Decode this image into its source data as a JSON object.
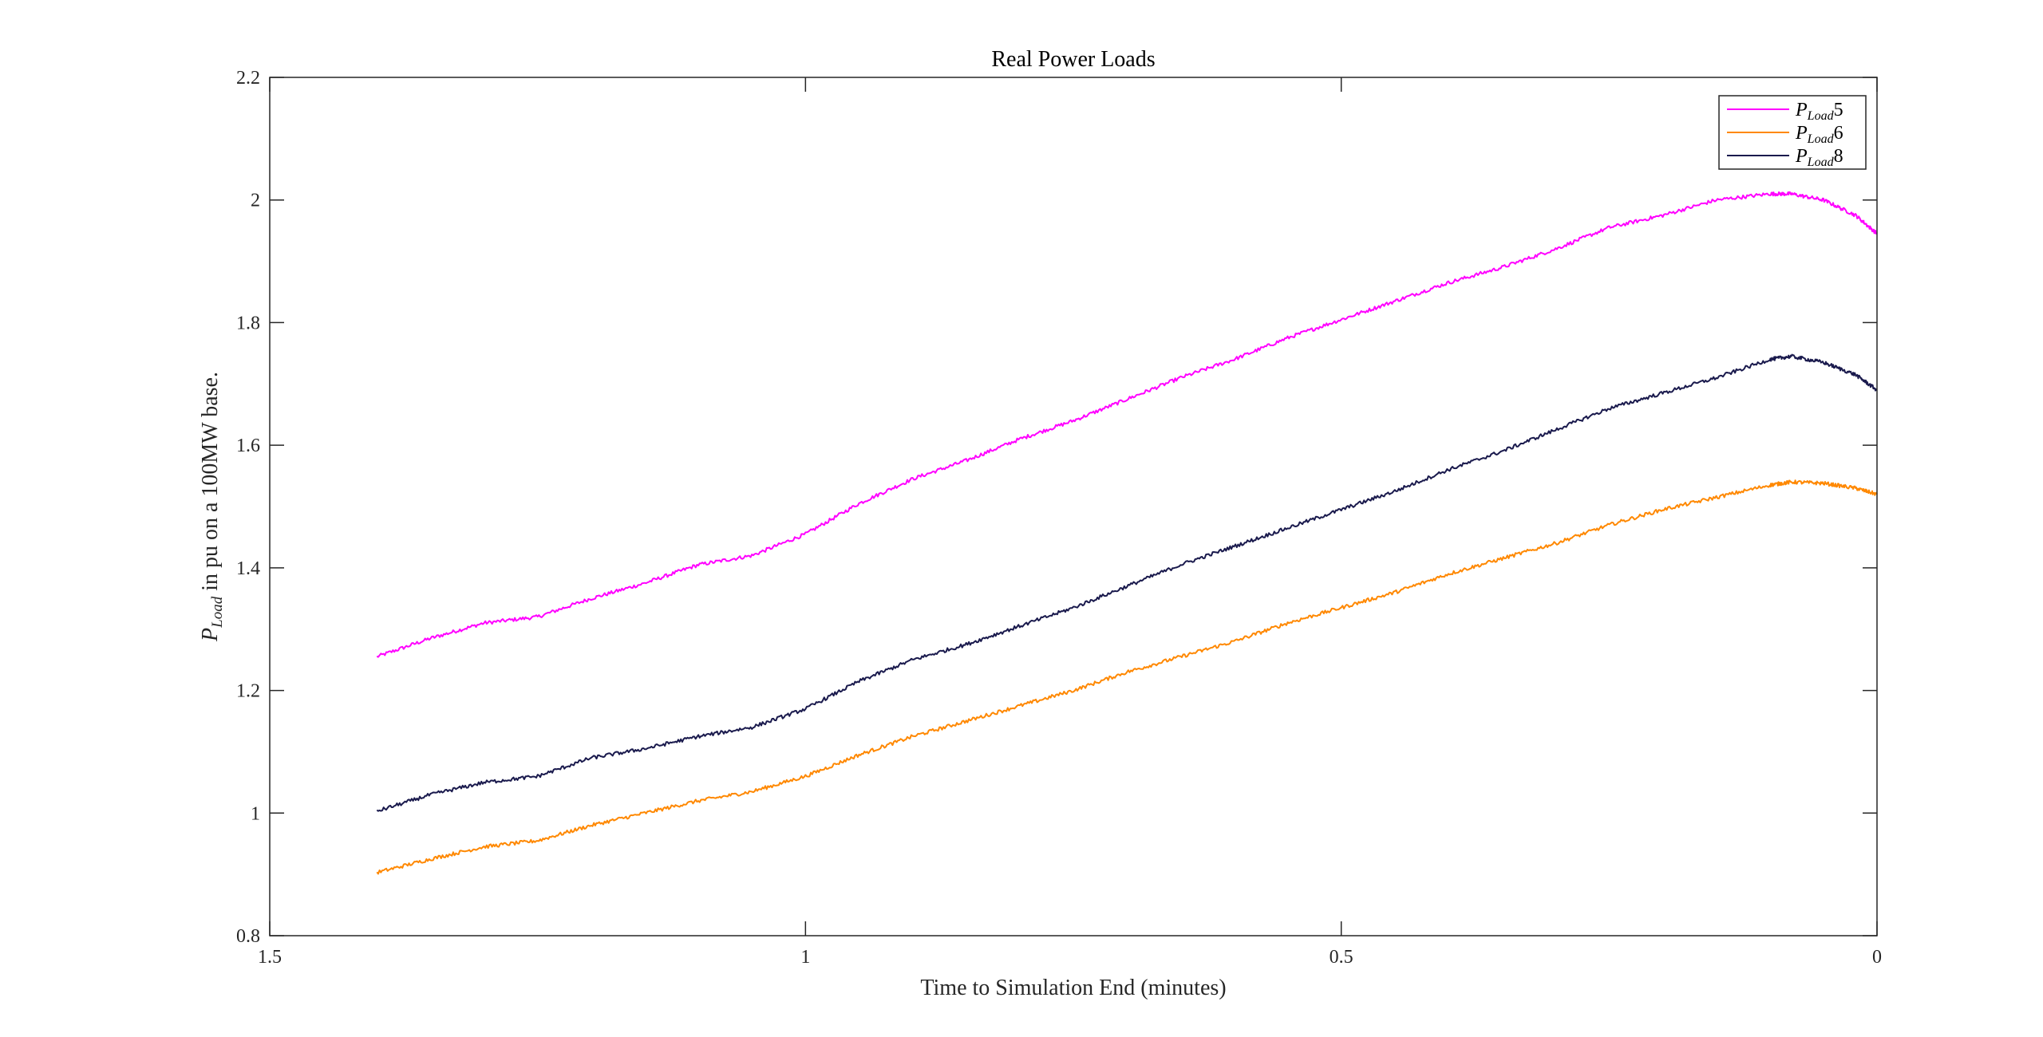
{
  "chart_data": {
    "type": "line",
    "title": "Real Power Loads",
    "xlabel": "Time to Simulation End (minutes)",
    "ylabel": {
      "symbol": "P",
      "subscript": "Load",
      "rest": " in pu on a 100MW base."
    },
    "xlim": [
      1.5,
      0
    ],
    "ylim": [
      0.8,
      2.2
    ],
    "x_reversed": true,
    "x_ticks": [
      "1.5",
      "1",
      "0.5",
      "0"
    ],
    "x_tick_values": [
      1.5,
      1,
      0.5,
      0
    ],
    "y_ticks": [
      "0.8",
      "1",
      "1.2",
      "1.4",
      "1.6",
      "1.8",
      "2",
      "2.2"
    ],
    "y_tick_values": [
      0.8,
      1,
      1.2,
      1.4,
      1.6,
      1.8,
      2,
      2.2
    ],
    "grid": false,
    "legend_position": "top-right",
    "x": [
      1.4,
      1.35,
      1.3,
      1.25,
      1.2,
      1.15,
      1.1,
      1.05,
      1.0,
      0.95,
      0.9,
      0.85,
      0.8,
      0.75,
      0.7,
      0.65,
      0.6,
      0.55,
      0.5,
      0.45,
      0.4,
      0.35,
      0.3,
      0.25,
      0.2,
      0.15,
      0.1,
      0.08,
      0.05,
      0.02,
      0.0
    ],
    "series": [
      {
        "name": "5",
        "legend_symbol": "P",
        "legend_subscript": "Load",
        "legend_suffix": "5",
        "color": "#ff00ff",
        "values": [
          1.255,
          1.285,
          1.31,
          1.32,
          1.35,
          1.375,
          1.405,
          1.42,
          1.455,
          1.505,
          1.545,
          1.575,
          1.61,
          1.64,
          1.675,
          1.71,
          1.74,
          1.775,
          1.805,
          1.835,
          1.865,
          1.89,
          1.92,
          1.955,
          1.975,
          2.0,
          2.01,
          2.01,
          2.0,
          1.975,
          1.945
        ]
      },
      {
        "name": "6",
        "legend_symbol": "P",
        "legend_subscript": "Load",
        "legend_suffix": "6",
        "color": "#ff8800",
        "values": [
          0.903,
          0.925,
          0.945,
          0.955,
          0.98,
          1.0,
          1.02,
          1.035,
          1.06,
          1.095,
          1.125,
          1.15,
          1.175,
          1.2,
          1.23,
          1.255,
          1.28,
          1.31,
          1.335,
          1.36,
          1.39,
          1.415,
          1.44,
          1.47,
          1.495,
          1.515,
          1.535,
          1.54,
          1.538,
          1.53,
          1.52
        ]
      },
      {
        "name": "8",
        "legend_symbol": "P",
        "legend_subscript": "Load",
        "legend_suffix": "8",
        "color": "#1a1a4d",
        "values": [
          1.003,
          1.03,
          1.05,
          1.06,
          1.09,
          1.105,
          1.125,
          1.14,
          1.17,
          1.215,
          1.25,
          1.275,
          1.305,
          1.335,
          1.37,
          1.405,
          1.435,
          1.465,
          1.495,
          1.525,
          1.56,
          1.59,
          1.625,
          1.66,
          1.685,
          1.71,
          1.74,
          1.745,
          1.735,
          1.715,
          1.69
        ]
      }
    ]
  }
}
